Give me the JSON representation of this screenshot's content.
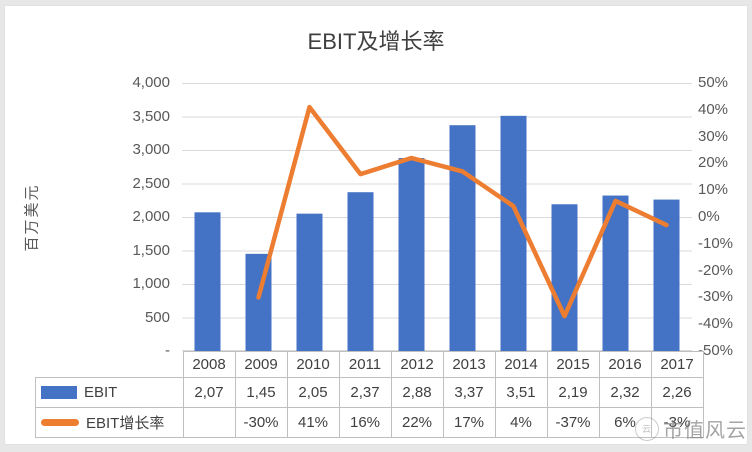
{
  "page": {
    "watermark": "市值风云",
    "watermark_logo": "cloud-seal-icon"
  },
  "chart_data": {
    "type": "combo",
    "title": "EBIT及增长率",
    "categories": [
      "2008",
      "2009",
      "2010",
      "2011",
      "2012",
      "2013",
      "2014",
      "2015",
      "2016",
      "2017"
    ],
    "series": [
      {
        "name": "EBIT",
        "type": "bar",
        "axis": "left",
        "color": "#4472C4",
        "values": [
          2070,
          1450,
          2050,
          2370,
          2880,
          3370,
          3510,
          2190,
          2320,
          2260
        ],
        "table_labels": [
          "2,07",
          "1,45",
          "2,05",
          "2,37",
          "2,88",
          "3,37",
          "3,51",
          "2,19",
          "2,32",
          "2,26"
        ]
      },
      {
        "name": "EBIT增长率",
        "type": "line",
        "axis": "right",
        "color": "#ED7D31",
        "values": [
          null,
          -30,
          41,
          16,
          22,
          17,
          4,
          -37,
          6,
          -3
        ],
        "table_labels": [
          "",
          "-30%",
          "41%",
          "16%",
          "22%",
          "17%",
          "4%",
          "-37%",
          "6%",
          "-3%"
        ]
      }
    ],
    "left_axis": {
      "title": "百万美元",
      "min": 0,
      "max": 4000,
      "ticks": [
        "4,000",
        "3,500",
        "3,000",
        "2,500",
        "2,000",
        "1,500",
        "1,000",
        "500",
        "-"
      ]
    },
    "right_axis": {
      "min": -50,
      "max": 50,
      "ticks": [
        "50%",
        "40%",
        "30%",
        "20%",
        "10%",
        "0%",
        "-10%",
        "-20%",
        "-30%",
        "-40%",
        "-50%"
      ]
    },
    "grid": true,
    "grid_color": "#d9d9d9",
    "legend_position": "data-table-left"
  }
}
